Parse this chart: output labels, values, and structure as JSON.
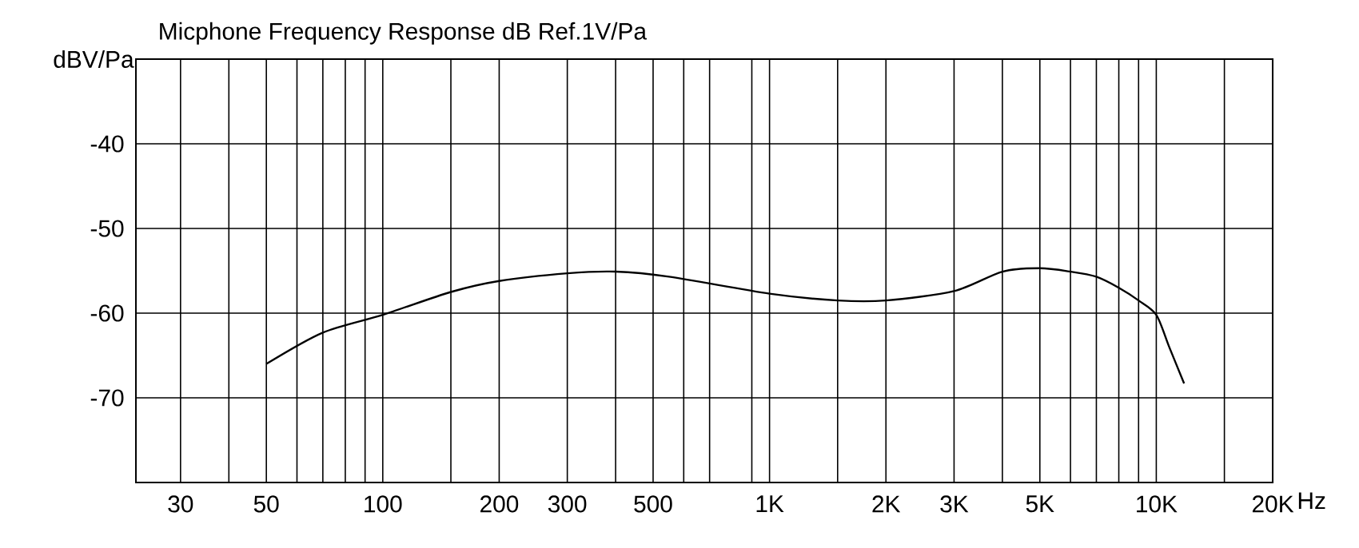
{
  "chart_data": {
    "type": "line",
    "title": "Micphone Frequency Response dB Ref.1V/Pa",
    "ylabel": "dBV/Pa",
    "xlabel": "Hz",
    "x": [
      50,
      70,
      100,
      150,
      200,
      300,
      400,
      550,
      1000,
      1500,
      2000,
      3000,
      4000,
      5000,
      6000,
      7000,
      8000,
      9000,
      10000,
      10800,
      11800
    ],
    "series": [
      {
        "color": "#000000",
        "values": [
          -66.0,
          -62.3,
          -60.2,
          -57.5,
          -56.2,
          -55.3,
          -55.1,
          -55.7,
          -57.7,
          -58.5,
          -58.5,
          -57.4,
          -55.1,
          -54.7,
          -55.1,
          -55.7,
          -57.0,
          -58.5,
          -60.2,
          -64.0,
          -68.3
        ]
      }
    ],
    "log": "x",
    "grid": true,
    "marker": "none",
    "line_style": "solid",
    "xlim": [
      23,
      20000
    ],
    "ylim": [
      -80,
      -30
    ],
    "xticks": [
      30,
      {
        "value": 40,
        "label": null
      },
      50,
      {
        "value": 60,
        "label": null
      },
      {
        "value": 70,
        "label": null
      },
      {
        "value": 80,
        "label": null
      },
      {
        "value": 90,
        "label": null
      },
      100,
      {
        "value": 150,
        "label": null
      },
      200,
      300,
      {
        "value": 400,
        "label": null
      },
      500,
      {
        "value": 600,
        "label": null
      },
      {
        "value": 700,
        "label": null
      },
      {
        "value": 900,
        "label": null
      },
      {
        "value": 1000,
        "label": "1K"
      },
      {
        "value": 1500,
        "label": null
      },
      {
        "value": 2000,
        "label": "2K"
      },
      {
        "value": 3000,
        "label": "3K"
      },
      {
        "value": 4000,
        "label": null
      },
      {
        "value": 5000,
        "label": "5K"
      },
      {
        "value": 6000,
        "label": null
      },
      {
        "value": 7000,
        "label": null
      },
      {
        "value": 8000,
        "label": null
      },
      {
        "value": 9000,
        "label": null
      },
      {
        "value": 10000,
        "label": "10K"
      },
      {
        "value": 15000,
        "label": null
      },
      {
        "value": 20000,
        "label": "20K"
      }
    ],
    "yticks": [
      {
        "value": -80,
        "label": null
      },
      -70,
      -60,
      -50,
      -40,
      {
        "value": -30,
        "label": null
      }
    ]
  }
}
